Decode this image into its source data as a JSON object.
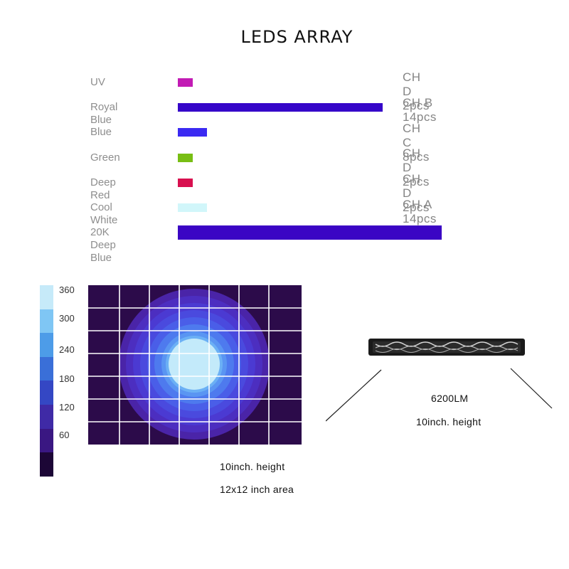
{
  "title": "LEDS ARRAY",
  "chart_data": {
    "type": "bar",
    "orientation": "horizontal",
    "categories": [
      "UV",
      "Royal Blue",
      "Blue",
      "Green",
      "Deep Red",
      "Cool White",
      "20K Deep Blue"
    ],
    "values": [
      1,
      14,
      2,
      1,
      1,
      2,
      18
    ],
    "colors": [
      "#c21bb4",
      "#3606c9",
      "#3b2af2",
      "#78be14",
      "#d8104f",
      "#d1f6fa",
      "#3b05c4"
    ],
    "channels": [
      "CH D 2pcs",
      "CH B 14pcs",
      "CH C 8pcs",
      "CH D 2pcs",
      "CH D 2pcs",
      "CH A 14pcs",
      ""
    ],
    "xlabel": "",
    "ylabel": "",
    "grid": false
  },
  "color_scale": {
    "ticks": [
      "360",
      "300",
      "240",
      "180",
      "120",
      "60"
    ],
    "colors": [
      "#c6eaf9",
      "#7fc6f4",
      "#4d9ce8",
      "#3a6fd8",
      "#3447c4",
      "#3f2aa6",
      "#3a1782",
      "#1c0636"
    ]
  },
  "heatmap": {
    "background": "#2c0b4a",
    "ring_colors": [
      "#4a24a8",
      "#4c2ec0",
      "#4b3ad2",
      "#4a4ade",
      "#4a5ee8",
      "#4e7aee",
      "#5a95f2",
      "#6bb0f5",
      "#c3eafa"
    ],
    "grid_color": "#ffffff"
  },
  "captions": {
    "heatmap_height": "10inch. height",
    "heatmap_area": "12x12 inch area",
    "lumens": "6200LM",
    "fixture_height": "10inch. height"
  }
}
